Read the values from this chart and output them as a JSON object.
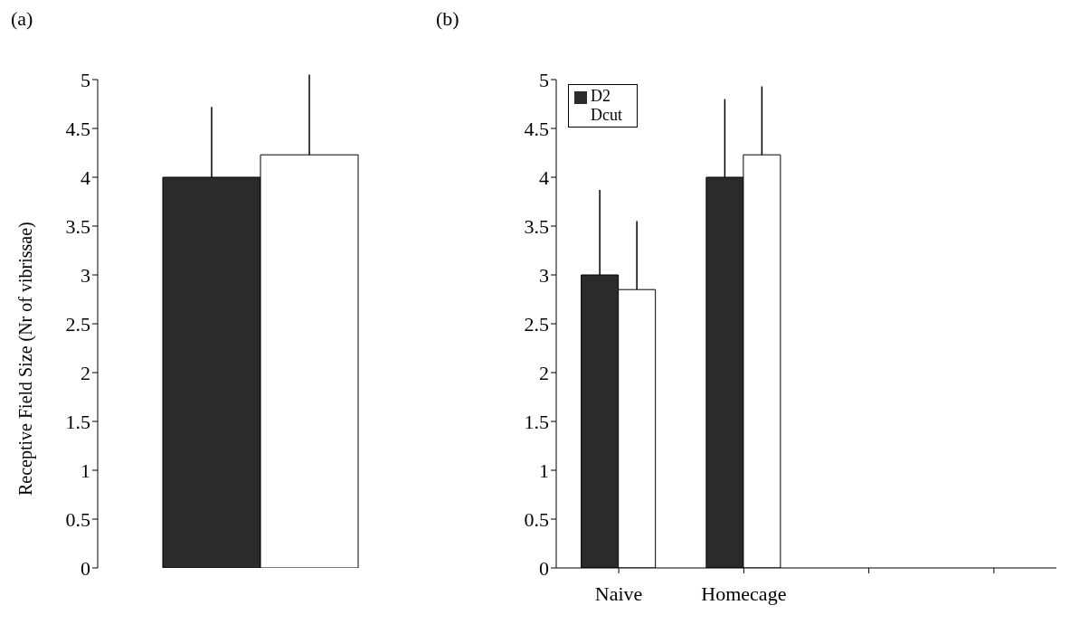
{
  "chart_data": [
    {
      "type": "bar",
      "title": "(a)",
      "ylabel": "Receptive Field Size (Nr of vibrissae)",
      "categories": [
        null
      ],
      "series": [
        {
          "color": "#2b2b2b",
          "values": [
            4.0
          ],
          "errors": [
            [
              4.0,
              4.72
            ]
          ]
        },
        {
          "color": "#ffffff",
          "values": [
            4.23
          ],
          "errors": [
            [
              4.23,
              5.05
            ]
          ]
        }
      ],
      "ylim": [
        0,
        5
      ],
      "yticks": [
        0,
        0.5,
        1,
        1.5,
        2,
        2.5,
        3,
        3.5,
        4,
        4.5,
        5
      ],
      "grid": false,
      "legend": false,
      "tick_labels": "y"
    },
    {
      "type": "bar",
      "title": "(b)",
      "categories": [
        "Naive",
        "Homecage",
        null,
        null
      ],
      "series": [
        {
          "name": "D2",
          "color": "#2b2b2b",
          "values": [
            3.0,
            4.0,
            null,
            null
          ],
          "errors": [
            [
              3.0,
              3.87
            ],
            [
              4.0,
              4.8
            ],
            null,
            null
          ]
        },
        {
          "name": "Dcut",
          "color": "#ffffff",
          "values": [
            2.85,
            4.23,
            null,
            null
          ],
          "errors": [
            [
              2.85,
              3.55
            ],
            [
              4.23,
              4.93
            ],
            null,
            null
          ]
        }
      ],
      "ylim": [
        0,
        5
      ],
      "yticks": [
        0,
        0.5,
        1,
        1.5,
        2,
        2.5,
        3,
        3.5,
        4,
        4.5,
        5
      ],
      "grid": false,
      "legend": "top left"
    }
  ]
}
